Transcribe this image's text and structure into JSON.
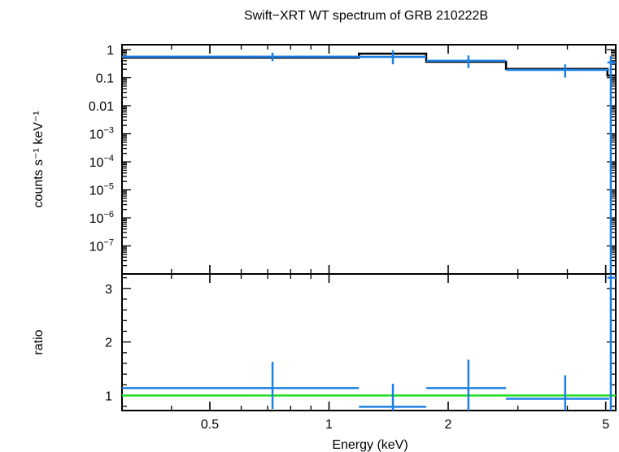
{
  "chart_data": [
    {
      "panel": "spectrum",
      "type": "scatter",
      "title": "Swift−XRT WT spectrum of GRB 210222B",
      "xlabel": "",
      "ylabel": "counts s⁻¹ keV⁻¹",
      "x_scale": "log",
      "y_scale": "log",
      "xlim": [
        0.3,
        5.3
      ],
      "ylim": [
        1e-08,
        1.5
      ],
      "y_ticks": [
        {
          "value": 1,
          "label": "1"
        },
        {
          "value": 0.1,
          "label": "0.1"
        },
        {
          "value": 0.01,
          "label": "0.01"
        },
        {
          "value": 0.001,
          "base": "10",
          "exp": "−3"
        },
        {
          "value": 0.0001,
          "base": "10",
          "exp": "−4"
        },
        {
          "value": 1e-05,
          "base": "10",
          "exp": "−5"
        },
        {
          "value": 1e-06,
          "base": "10",
          "exp": "−6"
        },
        {
          "value": 1e-07,
          "base": "10",
          "exp": "−7"
        }
      ],
      "data_points": [
        {
          "x_lo": 0.3,
          "x_hi": 1.19,
          "x": 0.72,
          "y": 0.56,
          "y_lo": 0.39,
          "y_hi": 0.78
        },
        {
          "x_lo": 1.19,
          "x_hi": 1.76,
          "x": 1.45,
          "y": 0.55,
          "y_lo": 0.3,
          "y_hi": 0.95
        },
        {
          "x_lo": 1.76,
          "x_hi": 2.8,
          "x": 2.25,
          "y": 0.4,
          "y_lo": 0.22,
          "y_hi": 0.62
        },
        {
          "x_lo": 2.8,
          "x_hi": 5.1,
          "x": 3.95,
          "y": 0.19,
          "y_lo": 0.1,
          "y_hi": 0.3
        },
        {
          "x_lo": 5.05,
          "x_hi": 5.3,
          "x": 5.15,
          "y": 0.35,
          "y_lo": 1e-08,
          "y_hi": 0.6
        }
      ],
      "model_steps": [
        {
          "x_lo": 0.3,
          "x_hi": 1.19,
          "y": 0.52
        },
        {
          "x_lo": 1.19,
          "x_hi": 1.76,
          "y": 0.72
        },
        {
          "x_lo": 1.76,
          "x_hi": 2.8,
          "y": 0.37
        },
        {
          "x_lo": 2.8,
          "x_hi": 5.05,
          "y": 0.205
        },
        {
          "x_lo": 5.05,
          "x_hi": 5.3,
          "y": 0.12
        }
      ],
      "data_color": "#1b7fe3",
      "model_color": "#000000"
    },
    {
      "panel": "ratio",
      "type": "scatter",
      "xlabel": "Energy (keV)",
      "ylabel": "ratio",
      "x_scale": "log",
      "xlim": [
        0.3,
        5.3
      ],
      "ylim": [
        0.72,
        3.27
      ],
      "x_ticks": [
        {
          "value": 0.5,
          "label": "0.5"
        },
        {
          "value": 1,
          "label": "1"
        },
        {
          "value": 2,
          "label": "2"
        },
        {
          "value": 5,
          "label": "5"
        }
      ],
      "y_ticks": [
        {
          "value": 1,
          "label": "1"
        },
        {
          "value": 2,
          "label": "2"
        },
        {
          "value": 3,
          "label": "3"
        }
      ],
      "data_points": [
        {
          "x_lo": 0.3,
          "x_hi": 1.19,
          "x": 0.72,
          "y": 1.14,
          "y_lo": 0.75,
          "y_hi": 1.63
        },
        {
          "x_lo": 1.19,
          "x_hi": 1.76,
          "x": 1.45,
          "y": 0.79,
          "y_lo": 0.72,
          "y_hi": 1.22
        },
        {
          "x_lo": 1.76,
          "x_hi": 2.8,
          "x": 2.25,
          "y": 1.14,
          "y_lo": 0.72,
          "y_hi": 1.67
        },
        {
          "x_lo": 2.8,
          "x_hi": 5.1,
          "x": 3.95,
          "y": 0.94,
          "y_lo": 0.72,
          "y_hi": 1.38
        },
        {
          "x_lo": 5.05,
          "x_hi": 5.3,
          "x": 5.15,
          "y": 3.2,
          "y_lo": 0.72,
          "y_hi": 3.27
        }
      ],
      "reference_line": {
        "y": 1.0,
        "color": "#22dd22"
      },
      "data_color": "#1b7fe3"
    }
  ]
}
